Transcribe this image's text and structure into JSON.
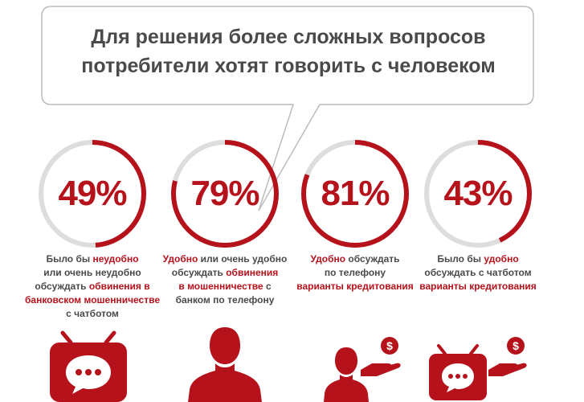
{
  "headline": {
    "line1": "Для решения более сложных вопросов",
    "line2": "потребители хотят говорить с человеком"
  },
  "colors": {
    "accent": "#b5121b",
    "text": "#4a4a4a",
    "ring_bg": "#dddddd"
  },
  "stats": [
    {
      "value": 49,
      "label": "49%",
      "caption": [
        [
          {
            "t": "Было бы ",
            "hl": false
          },
          {
            "t": "неудобно",
            "hl": true
          }
        ],
        [
          {
            "t": "или очень неудобно",
            "hl": false
          }
        ],
        [
          {
            "t": "обсуждать ",
            "hl": false
          },
          {
            "t": "обвинения в",
            "hl": true
          }
        ],
        [
          {
            "t": "банковском мошенничестве",
            "hl": true
          }
        ],
        [
          {
            "t": "с чатботом",
            "hl": false
          }
        ]
      ],
      "icon": "chat-bot-icon"
    },
    {
      "value": 79,
      "label": "79%",
      "caption": [
        [
          {
            "t": "Удобно",
            "hl": true
          },
          {
            "t": " или очень удобно",
            "hl": false
          }
        ],
        [
          {
            "t": "обсуждать ",
            "hl": false
          },
          {
            "t": "обвинения",
            "hl": true
          }
        ],
        [
          {
            "t": "в мошенничестве",
            "hl": true
          },
          {
            "t": " с",
            "hl": false
          }
        ],
        [
          {
            "t": "банком по телефону",
            "hl": false
          }
        ]
      ],
      "icon": "person-icon"
    },
    {
      "value": 81,
      "label": "81%",
      "caption": [
        [
          {
            "t": "Удобно",
            "hl": true
          },
          {
            "t": " обсуждать",
            "hl": false
          }
        ],
        [
          {
            "t": "по телефону",
            "hl": false
          }
        ],
        [
          {
            "t": "варианты кредитования",
            "hl": true
          }
        ]
      ],
      "icon": "person-with-money-icon"
    },
    {
      "value": 43,
      "label": "43%",
      "caption": [
        [
          {
            "t": "Было бы ",
            "hl": false
          },
          {
            "t": "удобно",
            "hl": true
          }
        ],
        [
          {
            "t": "обсуждать с чатботом",
            "hl": false
          }
        ],
        [
          {
            "t": "варианты кредитования",
            "hl": true
          }
        ]
      ],
      "icon": "chat-bot-with-money-icon"
    }
  ]
}
